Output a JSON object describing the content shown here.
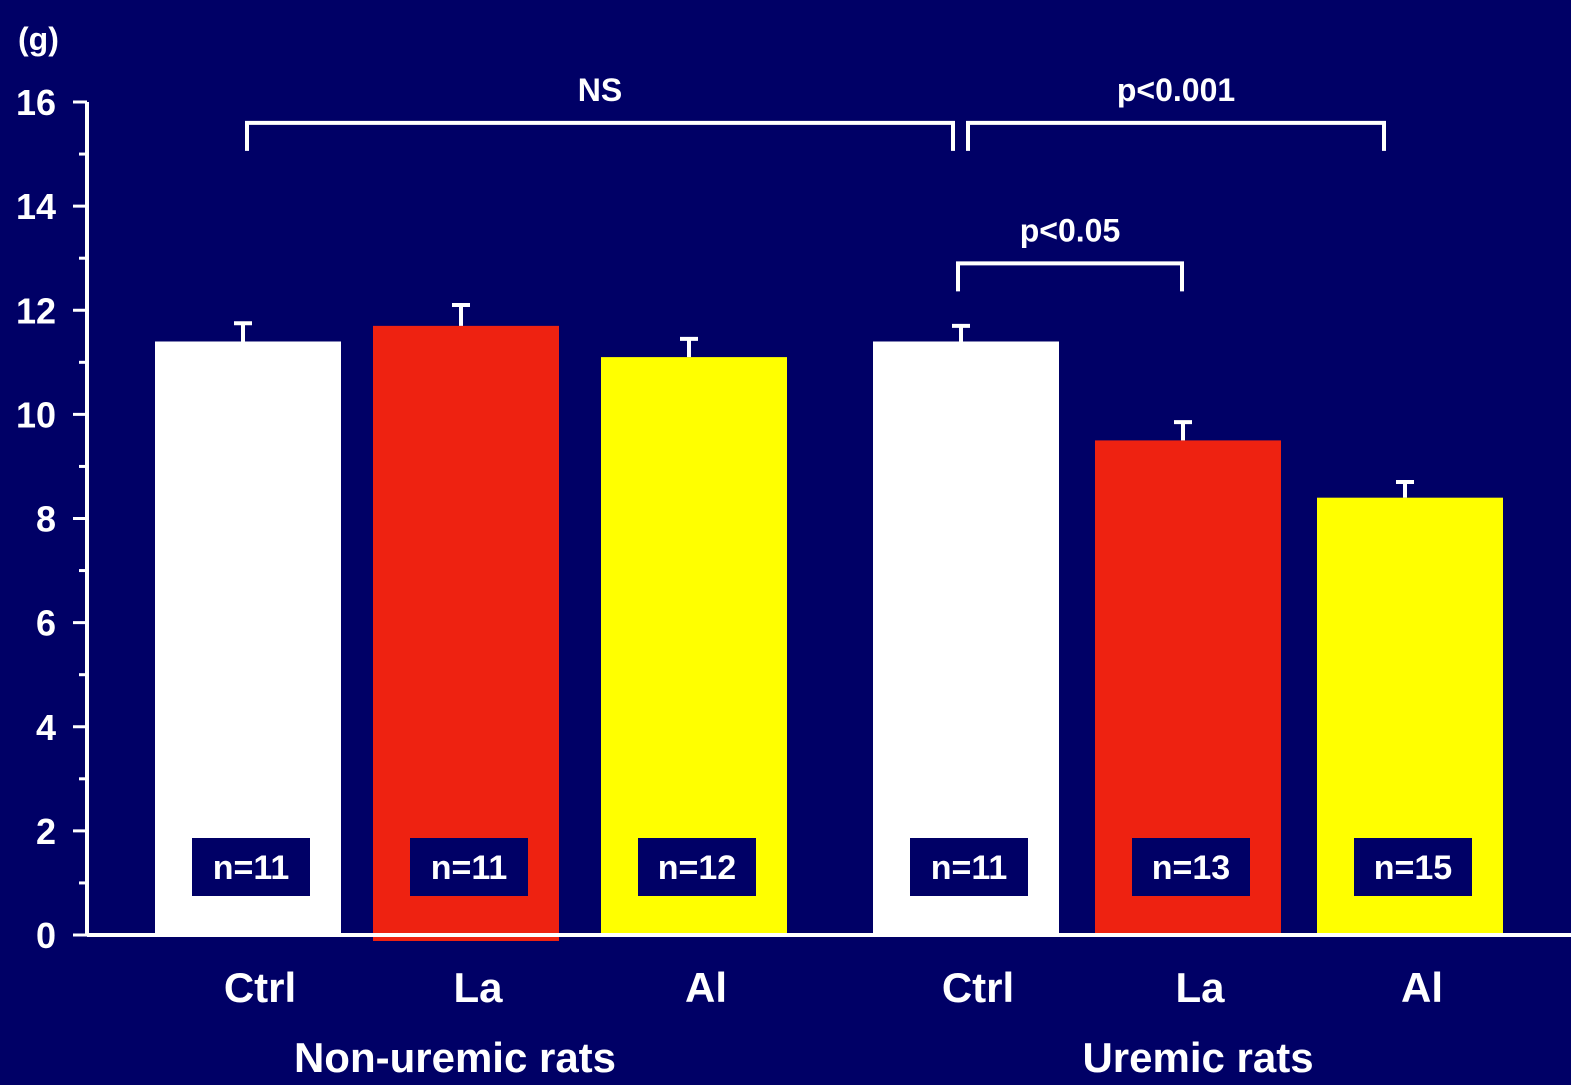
{
  "chart_data": {
    "type": "bar",
    "ylabel": "(g)",
    "xlabel": "",
    "ylim": [
      0,
      16
    ],
    "yticks": [
      0,
      2,
      4,
      6,
      8,
      10,
      12,
      14,
      16
    ],
    "groups": [
      {
        "name": "Non-uremic rats",
        "categories": [
          "Ctrl",
          "La",
          "Al"
        ]
      },
      {
        "name": "Uremic rats",
        "categories": [
          "Ctrl",
          "La",
          "Al"
        ]
      }
    ],
    "bars": [
      {
        "group": "Non-uremic rats",
        "category": "Ctrl",
        "value": 11.4,
        "error": 0.35,
        "n_label": "n=11",
        "color": "#ffffff"
      },
      {
        "group": "Non-uremic rats",
        "category": "La",
        "value": 11.7,
        "error": 0.4,
        "n_label": "n=11",
        "color": "#ee2211"
      },
      {
        "group": "Non-uremic rats",
        "category": "Al",
        "value": 11.1,
        "error": 0.35,
        "n_label": "n=12",
        "color": "#ffff00"
      },
      {
        "group": "Uremic rats",
        "category": "Ctrl",
        "value": 11.4,
        "error": 0.3,
        "n_label": "n=11",
        "color": "#ffffff"
      },
      {
        "group": "Uremic rats",
        "category": "La",
        "value": 9.5,
        "error": 0.35,
        "n_label": "n=13",
        "color": "#ee2211"
      },
      {
        "group": "Uremic rats",
        "category": "Al",
        "value": 8.4,
        "error": 0.3,
        "n_label": "n=15",
        "color": "#ffff00"
      }
    ],
    "annotations": [
      {
        "label": "NS",
        "from_bar": 0,
        "to_bar": 3,
        "level": 15.6
      },
      {
        "label": "p<0.001",
        "from_bar": 3,
        "to_bar": 5,
        "level": 15.6
      },
      {
        "label": "p<0.05",
        "from_bar": 3,
        "to_bar": 4,
        "level": 12.9
      }
    ],
    "colors": {
      "background": "#000066",
      "axis": "#ffffff",
      "n_box": "#000066"
    }
  }
}
